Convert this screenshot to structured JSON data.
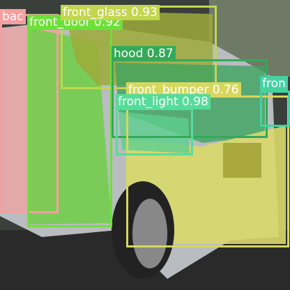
{
  "detections": [
    {
      "text": "bac"
    },
    {
      "text": "front_door 0.92"
    },
    {
      "text": "front_glass 0.93"
    },
    {
      "text": "hood 0.87"
    },
    {
      "text": "front_bumper 0.76"
    },
    {
      "text": "front_light 0.98"
    },
    {
      "text": "fron"
    }
  ]
}
